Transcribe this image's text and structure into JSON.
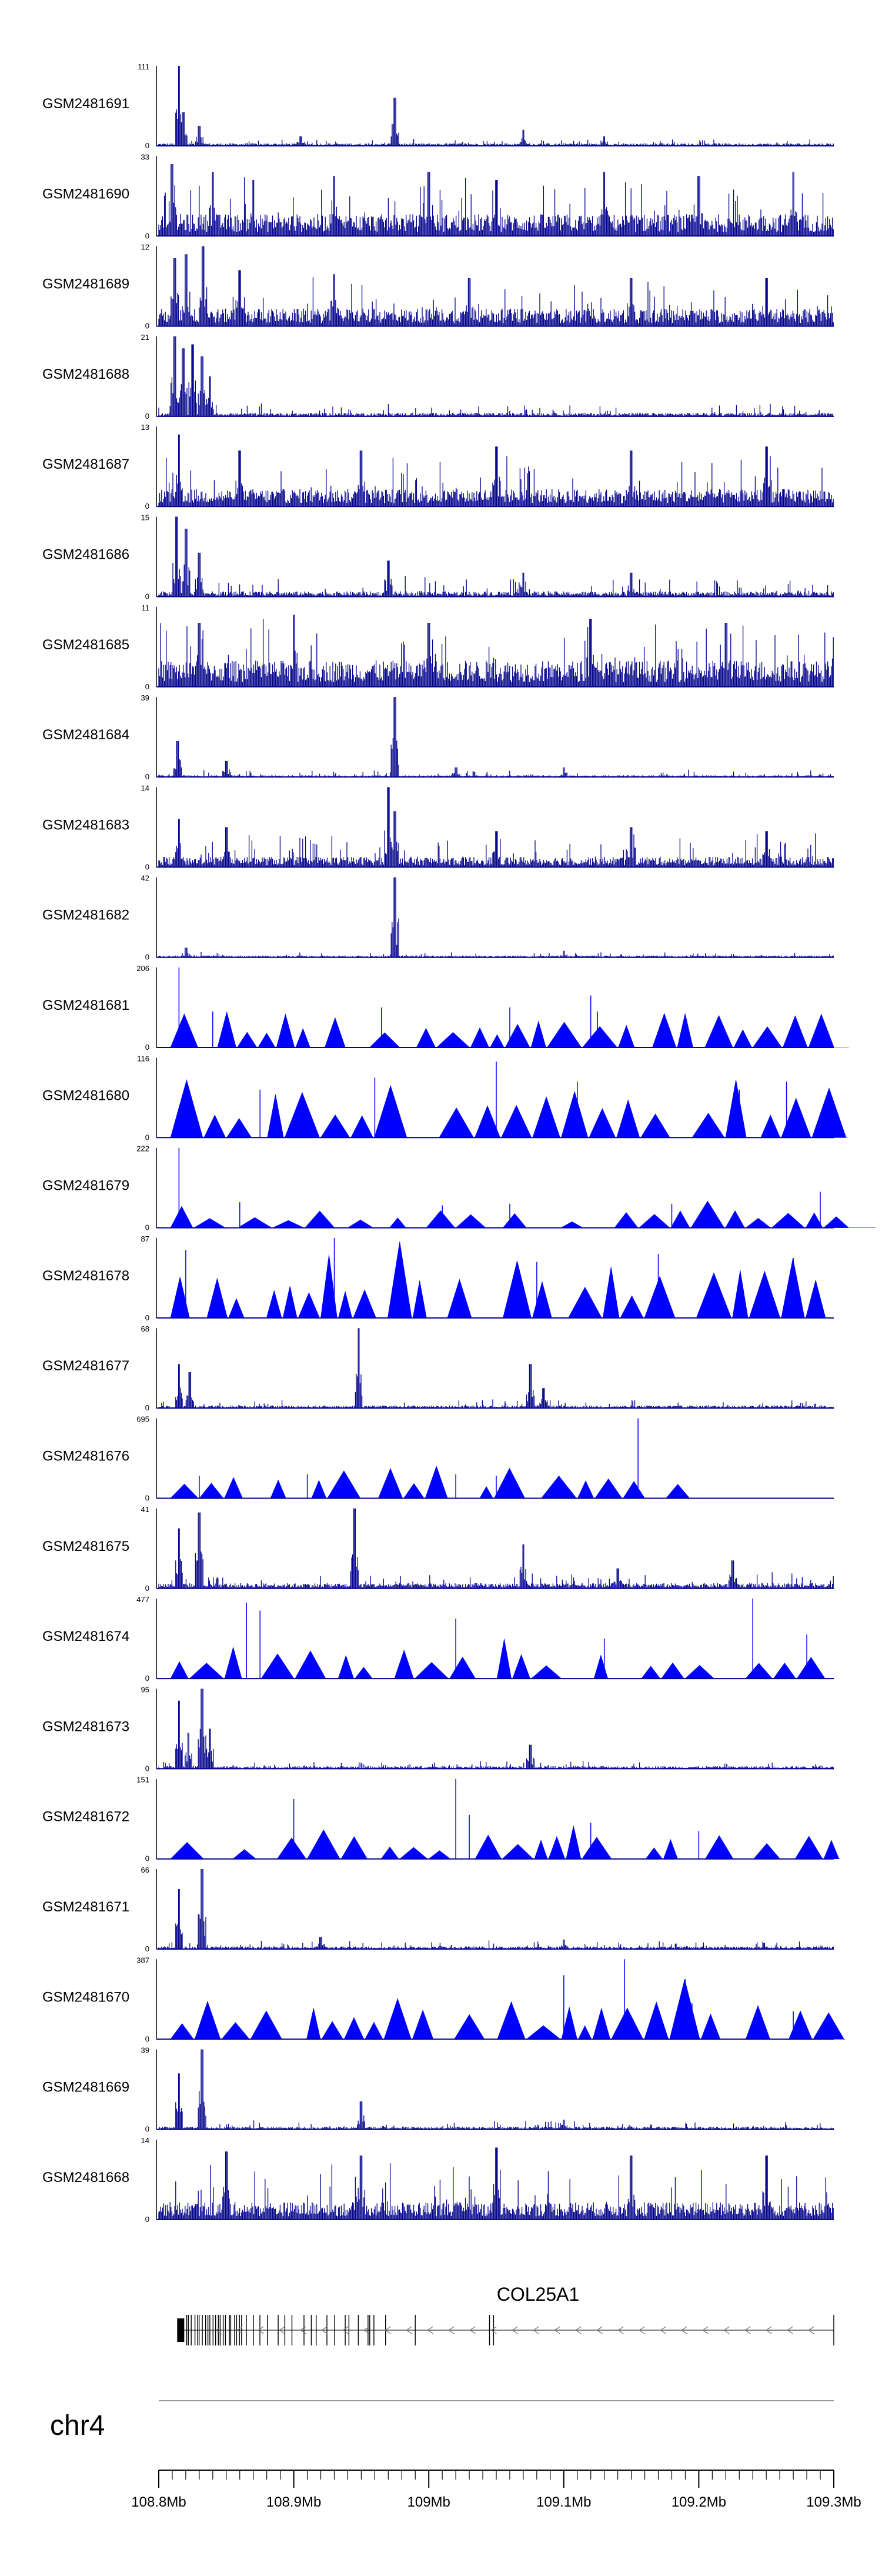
{
  "colors": {
    "coverage_fill": "#0000ff",
    "coverage_dense": "#00008b",
    "axis": "#000000",
    "baseline": "#9a9a9a"
  },
  "chart_data": {
    "type": "area",
    "xlim": [
      108.8,
      109.3
    ],
    "x_unit": "Mb",
    "ticks": [
      "108.8Mb",
      "108.9Mb",
      "109Mb",
      "109.1Mb",
      "109.2Mb",
      "109.3Mb"
    ],
    "chromosome": "chr4",
    "gene": {
      "name": "COL25A1",
      "strand": "-",
      "start": 108.818,
      "end": 109.3
    },
    "series": [
      {
        "name": "GSM2481691",
        "ymax": "111",
        "style": "dense",
        "base": 0.03,
        "noise": 0.06,
        "peaks": [
          [
            108.815,
            1.0
          ],
          [
            108.818,
            0.42
          ],
          [
            108.83,
            0.25
          ],
          [
            108.905,
            0.12
          ],
          [
            108.975,
            0.6
          ],
          [
            109.07,
            0.2
          ],
          [
            109.13,
            0.12
          ]
        ]
      },
      {
        "name": "GSM2481690",
        "ymax": "33",
        "style": "dense",
        "base": 0.25,
        "noise": 0.5,
        "peaks": [
          [
            108.81,
            0.9
          ],
          [
            108.84,
            0.8
          ],
          [
            108.87,
            0.7
          ],
          [
            108.93,
            0.75
          ],
          [
            109.0,
            0.8
          ],
          [
            109.05,
            0.7
          ],
          [
            109.13,
            0.8
          ],
          [
            109.2,
            0.75
          ],
          [
            109.27,
            0.8
          ]
        ]
      },
      {
        "name": "GSM2481689",
        "ymax": "12",
        "style": "dense",
        "base": 0.2,
        "noise": 0.4,
        "peaks": [
          [
            108.812,
            0.85
          ],
          [
            108.82,
            0.9
          ],
          [
            108.833,
            1.0
          ],
          [
            108.86,
            0.7
          ],
          [
            108.93,
            0.65
          ],
          [
            109.03,
            0.6
          ],
          [
            109.15,
            0.6
          ],
          [
            109.25,
            0.6
          ]
        ]
      },
      {
        "name": "GSM2481688",
        "ymax": "21",
        "style": "dense",
        "base": 0.04,
        "noise": 0.12,
        "peaks": [
          [
            108.812,
            1.0
          ],
          [
            108.818,
            0.85
          ],
          [
            108.825,
            0.9
          ],
          [
            108.832,
            0.75
          ],
          [
            108.838,
            0.5
          ]
        ]
      },
      {
        "name": "GSM2481687",
        "ymax": "13",
        "style": "dense",
        "base": 0.2,
        "noise": 0.5,
        "peaks": [
          [
            108.815,
            0.9
          ],
          [
            108.86,
            0.7
          ],
          [
            108.95,
            0.7
          ],
          [
            109.05,
            0.75
          ],
          [
            109.15,
            0.7
          ],
          [
            109.25,
            0.75
          ]
        ]
      },
      {
        "name": "GSM2481686",
        "ymax": "15",
        "style": "dense",
        "base": 0.06,
        "noise": 0.2,
        "peaks": [
          [
            108.813,
            1.0
          ],
          [
            108.82,
            0.85
          ],
          [
            108.83,
            0.55
          ],
          [
            108.97,
            0.45
          ],
          [
            109.07,
            0.3
          ],
          [
            109.15,
            0.3
          ]
        ]
      },
      {
        "name": "GSM2481685",
        "ymax": "11",
        "style": "dense",
        "base": 0.3,
        "noise": 0.55,
        "peaks": [
          [
            108.83,
            0.8
          ],
          [
            108.9,
            0.9
          ],
          [
            109.0,
            0.8
          ],
          [
            109.12,
            0.85
          ],
          [
            109.22,
            0.8
          ]
        ]
      },
      {
        "name": "GSM2481684",
        "ymax": "39",
        "style": "dense",
        "base": 0.02,
        "noise": 0.07,
        "peaks": [
          [
            108.814,
            0.45
          ],
          [
            108.85,
            0.2
          ],
          [
            108.975,
            1.0
          ],
          [
            109.02,
            0.12
          ],
          [
            109.1,
            0.12
          ]
        ]
      },
      {
        "name": "GSM2481683",
        "ymax": "14",
        "style": "dense",
        "base": 0.12,
        "noise": 0.3,
        "peaks": [
          [
            108.815,
            0.6
          ],
          [
            108.85,
            0.5
          ],
          [
            108.97,
            1.0
          ],
          [
            108.975,
            0.7
          ],
          [
            109.05,
            0.45
          ],
          [
            109.15,
            0.5
          ],
          [
            109.25,
            0.45
          ]
        ]
      },
      {
        "name": "GSM2481682",
        "ymax": "42",
        "style": "dense",
        "base": 0.02,
        "noise": 0.05,
        "peaks": [
          [
            108.975,
            1.0
          ],
          [
            108.82,
            0.12
          ],
          [
            109.1,
            0.08
          ]
        ]
      },
      {
        "name": "GSM2481681",
        "ymax": "206",
        "style": "tri",
        "base": 0.36,
        "noise": 0.1,
        "peaks": [
          [
            108.815,
            1.0
          ],
          [
            108.84,
            0.45
          ],
          [
            108.965,
            0.5
          ],
          [
            109.06,
            0.5
          ],
          [
            109.12,
            0.65
          ],
          [
            109.125,
            0.45
          ]
        ]
      },
      {
        "name": "GSM2481680",
        "ymax": "116",
        "style": "tri",
        "base": 0.55,
        "noise": 0.2,
        "peaks": [
          [
            108.875,
            0.6
          ],
          [
            108.96,
            0.75
          ],
          [
            109.05,
            0.95
          ],
          [
            109.11,
            0.7
          ],
          [
            109.23,
            0.6
          ],
          [
            109.265,
            0.7
          ]
        ]
      },
      {
        "name": "GSM2481679",
        "ymax": "222",
        "style": "tri",
        "base": 0.18,
        "noise": 0.08,
        "peaks": [
          [
            108.815,
            1.0
          ],
          [
            108.86,
            0.32
          ],
          [
            109.01,
            0.28
          ],
          [
            109.06,
            0.3
          ],
          [
            109.18,
            0.3
          ],
          [
            109.29,
            0.45
          ]
        ]
      },
      {
        "name": "GSM2481678",
        "ymax": "87",
        "style": "tri",
        "base": 0.6,
        "noise": 0.25,
        "peaks": [
          [
            108.82,
            0.85
          ],
          [
            108.93,
            1.0
          ],
          [
            108.98,
            0.75
          ],
          [
            109.08,
            0.7
          ],
          [
            109.17,
            0.8
          ],
          [
            109.27,
            0.75
          ]
        ]
      },
      {
        "name": "GSM2481677",
        "ymax": "68",
        "style": "dense",
        "base": 0.03,
        "noise": 0.08,
        "peaks": [
          [
            108.815,
            0.55
          ],
          [
            108.823,
            0.45
          ],
          [
            108.948,
            1.0
          ],
          [
            109.075,
            0.55
          ],
          [
            109.085,
            0.25
          ]
        ]
      },
      {
        "name": "GSM2481676",
        "ymax": "695",
        "style": "tri",
        "base": 0.35,
        "noise": 0.05,
        "peaks": [
          [
            108.83,
            0.28
          ],
          [
            108.91,
            0.3
          ],
          [
            109.02,
            0.3
          ],
          [
            109.05,
            0.28
          ],
          [
            109.155,
            1.0
          ]
        ]
      },
      {
        "name": "GSM2481675",
        "ymax": "41",
        "style": "dense",
        "base": 0.06,
        "noise": 0.14,
        "peaks": [
          [
            108.815,
            0.75
          ],
          [
            108.83,
            0.95
          ],
          [
            108.945,
            1.0
          ],
          [
            109.07,
            0.55
          ],
          [
            109.14,
            0.25
          ],
          [
            109.225,
            0.35
          ]
        ]
      },
      {
        "name": "GSM2481674",
        "ymax": "477",
        "style": "tri",
        "base": 0.3,
        "noise": 0.12,
        "peaks": [
          [
            108.865,
            0.95
          ],
          [
            108.875,
            0.85
          ],
          [
            109.02,
            0.75
          ],
          [
            109.13,
            0.5
          ],
          [
            109.24,
            1.0
          ],
          [
            109.28,
            0.55
          ]
        ]
      },
      {
        "name": "GSM2481673",
        "ymax": "95",
        "style": "dense",
        "base": 0.03,
        "noise": 0.07,
        "peaks": [
          [
            108.815,
            0.85
          ],
          [
            108.822,
            0.45
          ],
          [
            108.832,
            1.0
          ],
          [
            108.838,
            0.5
          ],
          [
            109.075,
            0.3
          ]
        ]
      },
      {
        "name": "GSM2481672",
        "ymax": "151",
        "style": "tri",
        "base": 0.25,
        "noise": 0.12,
        "peaks": [
          [
            108.9,
            0.75
          ],
          [
            109.02,
            1.0
          ],
          [
            109.03,
            0.55
          ],
          [
            109.12,
            0.45
          ],
          [
            109.2,
            0.35
          ]
        ]
      },
      {
        "name": "GSM2481671",
        "ymax": "66",
        "style": "dense",
        "base": 0.03,
        "noise": 0.08,
        "peaks": [
          [
            108.815,
            0.75
          ],
          [
            108.832,
            1.0
          ],
          [
            108.92,
            0.15
          ],
          [
            109.1,
            0.12
          ]
        ]
      },
      {
        "name": "GSM2481670",
        "ymax": "387",
        "style": "tri",
        "base": 0.4,
        "noise": 0.1,
        "peaks": [
          [
            109.1,
            0.8
          ],
          [
            109.145,
            1.0
          ],
          [
            109.19,
            0.75
          ],
          [
            109.195,
            0.45
          ],
          [
            109.27,
            0.35
          ]
        ]
      },
      {
        "name": "GSM2481669",
        "ymax": "39",
        "style": "dense",
        "base": 0.03,
        "noise": 0.08,
        "peaks": [
          [
            108.815,
            0.7
          ],
          [
            108.832,
            1.0
          ],
          [
            108.95,
            0.35
          ],
          [
            109.1,
            0.12
          ]
        ]
      },
      {
        "name": "GSM2481668",
        "ymax": "14",
        "style": "dense",
        "base": 0.2,
        "noise": 0.5,
        "peaks": [
          [
            108.85,
            0.85
          ],
          [
            108.95,
            0.8
          ],
          [
            109.05,
            0.9
          ],
          [
            109.15,
            0.8
          ],
          [
            109.25,
            0.8
          ]
        ]
      }
    ]
  }
}
